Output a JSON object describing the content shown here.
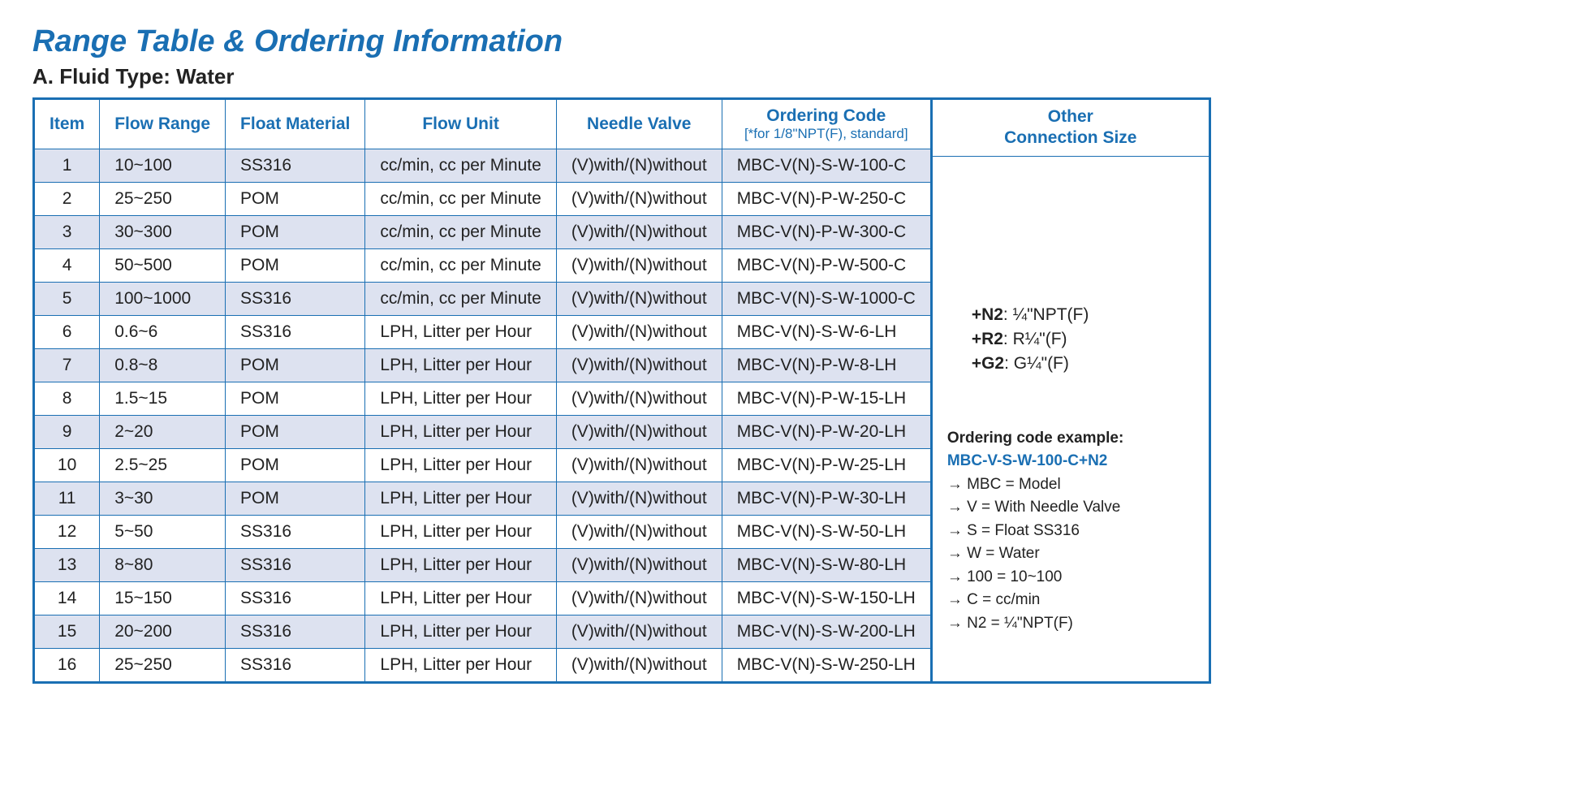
{
  "title": "Range Table & Ordering Information",
  "subtitle": "A. Fluid Type: Water",
  "columns": [
    "Item",
    "Flow Range",
    "Float Material",
    "Flow Unit",
    "Needle Valve"
  ],
  "ordering_col_title": "Ordering Code",
  "ordering_col_sub": "[*for 1/8\"NPT(F), standard]",
  "other_col_title": "Other\nConnection Size",
  "rows": [
    {
      "item": "1",
      "range": "10~100",
      "mat": "SS316",
      "unit": "cc/min, cc per Minute",
      "valve": "(V)with/(N)without",
      "code": "MBC-V(N)-S-W-100-C"
    },
    {
      "item": "2",
      "range": "25~250",
      "mat": "POM",
      "unit": "cc/min, cc per Minute",
      "valve": "(V)with/(N)without",
      "code": "MBC-V(N)-P-W-250-C"
    },
    {
      "item": "3",
      "range": "30~300",
      "mat": "POM",
      "unit": "cc/min, cc per Minute",
      "valve": "(V)with/(N)without",
      "code": "MBC-V(N)-P-W-300-C"
    },
    {
      "item": "4",
      "range": "50~500",
      "mat": "POM",
      "unit": "cc/min, cc per Minute",
      "valve": "(V)with/(N)without",
      "code": "MBC-V(N)-P-W-500-C"
    },
    {
      "item": "5",
      "range": "100~1000",
      "mat": "SS316",
      "unit": "cc/min, cc per Minute",
      "valve": "(V)with/(N)without",
      "code": "MBC-V(N)-S-W-1000-C"
    },
    {
      "item": "6",
      "range": "0.6~6",
      "mat": "SS316",
      "unit": "LPH, Litter per Hour",
      "valve": "(V)with/(N)without",
      "code": "MBC-V(N)-S-W-6-LH"
    },
    {
      "item": "7",
      "range": "0.8~8",
      "mat": "POM",
      "unit": "LPH, Litter per Hour",
      "valve": "(V)with/(N)without",
      "code": "MBC-V(N)-P-W-8-LH"
    },
    {
      "item": "8",
      "range": "1.5~15",
      "mat": "POM",
      "unit": "LPH, Litter per Hour",
      "valve": "(V)with/(N)without",
      "code": "MBC-V(N)-P-W-15-LH"
    },
    {
      "item": "9",
      "range": "2~20",
      "mat": "POM",
      "unit": "LPH, Litter per Hour",
      "valve": "(V)with/(N)without",
      "code": "MBC-V(N)-P-W-20-LH"
    },
    {
      "item": "10",
      "range": "2.5~25",
      "mat": "POM",
      "unit": "LPH, Litter per Hour",
      "valve": "(V)with/(N)without",
      "code": "MBC-V(N)-P-W-25-LH"
    },
    {
      "item": "11",
      "range": "3~30",
      "mat": "POM",
      "unit": "LPH, Litter per Hour",
      "valve": "(V)with/(N)without",
      "code": "MBC-V(N)-P-W-30-LH"
    },
    {
      "item": "12",
      "range": "5~50",
      "mat": "SS316",
      "unit": "LPH, Litter per Hour",
      "valve": "(V)with/(N)without",
      "code": "MBC-V(N)-S-W-50-LH"
    },
    {
      "item": "13",
      "range": "8~80",
      "mat": "SS316",
      "unit": "LPH, Litter per Hour",
      "valve": "(V)with/(N)without",
      "code": "MBC-V(N)-S-W-80-LH"
    },
    {
      "item": "14",
      "range": "15~150",
      "mat": "SS316",
      "unit": "LPH, Litter per Hour",
      "valve": "(V)with/(N)without",
      "code": "MBC-V(N)-S-W-150-LH"
    },
    {
      "item": "15",
      "range": "20~200",
      "mat": "SS316",
      "unit": "LPH, Litter per Hour",
      "valve": "(V)with/(N)without",
      "code": "MBC-V(N)-S-W-200-LH"
    },
    {
      "item": "16",
      "range": "25~250",
      "mat": "SS316",
      "unit": "LPH, Litter per Hour",
      "valve": "(V)with/(N)without",
      "code": "MBC-V(N)-S-W-250-LH"
    }
  ],
  "connections": [
    {
      "code": "+N2",
      "desc": ": ¼\"NPT(F)"
    },
    {
      "code": "+R2",
      "desc": ": R¼\"(F)"
    },
    {
      "code": "+G2",
      "desc": ": G¼\"(F)"
    }
  ],
  "example": {
    "title": "Ordering code example:",
    "code": "MBC-V-S-W-100-C+N2",
    "lines": [
      "MBC = Model",
      "V = With Needle Valve",
      "S = Float SS316",
      "W = Water",
      "100 = 10~100",
      "C = cc/min",
      "N2 = ¼\"NPT(F)"
    ]
  },
  "style": {
    "brand_color": "#1a6fb3",
    "row_alt_bg": "#dde2f0",
    "row_bg": "#ffffff",
    "border_width_outer": 3,
    "border_width_inner": 1.5,
    "title_fontsize": 38,
    "subtitle_fontsize": 26,
    "cell_fontsize": 21
  }
}
